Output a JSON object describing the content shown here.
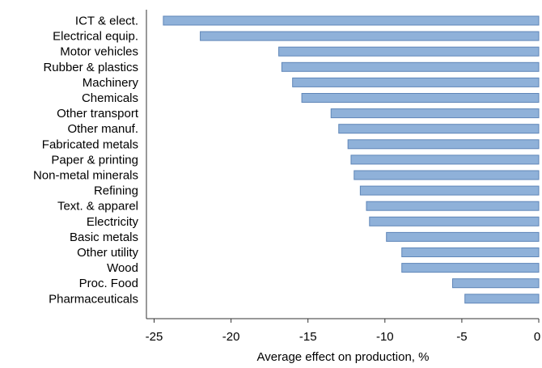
{
  "chart_data": {
    "type": "bar",
    "orientation": "horizontal",
    "title": "",
    "xlabel": "Average effect on production, %",
    "ylabel": "",
    "xlim": [
      -25.5,
      0
    ],
    "xticks": [
      -25,
      -20,
      -15,
      -10,
      -5,
      0
    ],
    "grid": false,
    "legend": "none",
    "categories": [
      "ICT & elect.",
      "Electrical equip.",
      "Motor vehicles",
      "Rubber & plastics",
      "Machinery",
      "Chemicals",
      "Other transport",
      "Other manuf.",
      "Fabricated metals",
      "Paper & printing",
      "Non-metal minerals",
      "Refining",
      "Text. & apparel",
      "Electricity",
      "Basic metals",
      "Other utility",
      "Wood",
      "Proc. Food",
      "Pharmaceuticals"
    ],
    "values": [
      -24.4,
      -22.0,
      -16.9,
      -16.7,
      -16.0,
      -15.4,
      -13.5,
      -13.0,
      -12.4,
      -12.2,
      -12.0,
      -11.6,
      -11.2,
      -11.0,
      -9.9,
      -8.9,
      -8.9,
      -5.6,
      -4.8
    ],
    "colors": {
      "bar_fill": "#8fb1d9",
      "bar_stroke": "#5f86b8",
      "axis": "#333333"
    }
  }
}
